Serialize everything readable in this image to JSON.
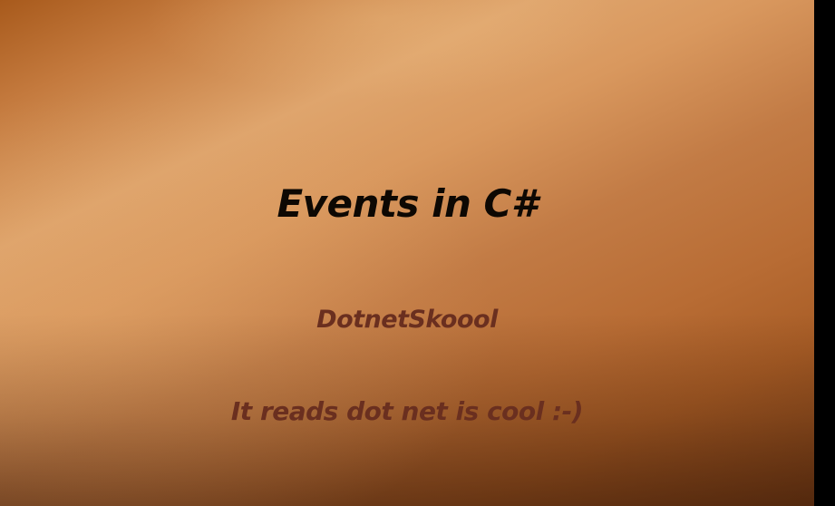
{
  "slide": {
    "title": "Events in C#",
    "subtitle": "DotnetSkoool",
    "tagline": "It reads dot net is cool :-)"
  },
  "colors": {
    "title_text": "#0d0803",
    "body_text": "#6a2f1f",
    "side_bar": "#000000",
    "background_light": "#dfa56d",
    "background_dark": "#7b4119"
  }
}
